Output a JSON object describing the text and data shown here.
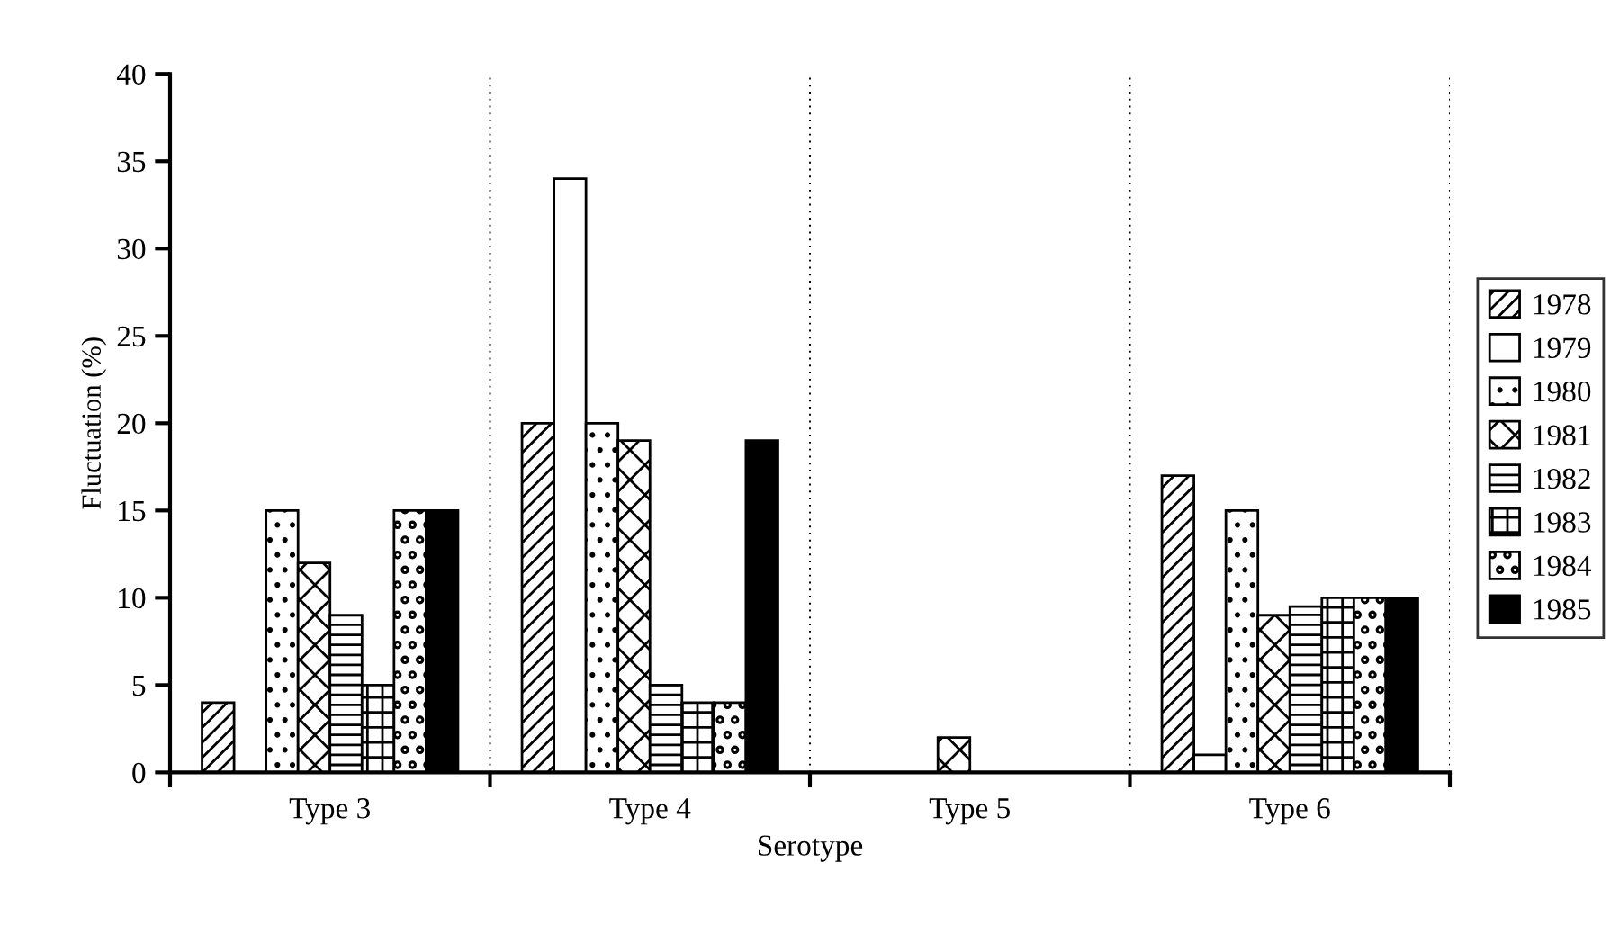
{
  "chart_data": {
    "type": "bar",
    "xlabel": "Serotype",
    "ylabel": "Fluctuation (%)",
    "categories": [
      "Type 3",
      "Type 4",
      "Type 5",
      "Type 6"
    ],
    "series": [
      {
        "name": "1978",
        "color": "#000000",
        "values": [
          4,
          20,
          null,
          17
        ]
      },
      {
        "name": "1979",
        "color": "#ffffff",
        "values": [
          null,
          34,
          null,
          1
        ]
      },
      {
        "name": "1980",
        "color": "#000000",
        "values": [
          15,
          20,
          null,
          15
        ]
      },
      {
        "name": "1981",
        "color": "#000000",
        "values": [
          12,
          19,
          2,
          9
        ]
      },
      {
        "name": "1982",
        "color": "#000000",
        "values": [
          9,
          5,
          null,
          9.5
        ]
      },
      {
        "name": "1983",
        "color": "#000000",
        "values": [
          5,
          4,
          null,
          10
        ]
      },
      {
        "name": "1984",
        "color": "#000000",
        "values": [
          15,
          4,
          null,
          10
        ]
      },
      {
        "name": "1985",
        "color": "#000000",
        "values": [
          15,
          19,
          null,
          10
        ]
      }
    ],
    "ylim": [
      0,
      40
    ],
    "yticks": [
      0,
      5,
      10,
      15,
      20,
      25,
      30,
      35,
      40
    ],
    "grid": "x",
    "legend": "right"
  }
}
